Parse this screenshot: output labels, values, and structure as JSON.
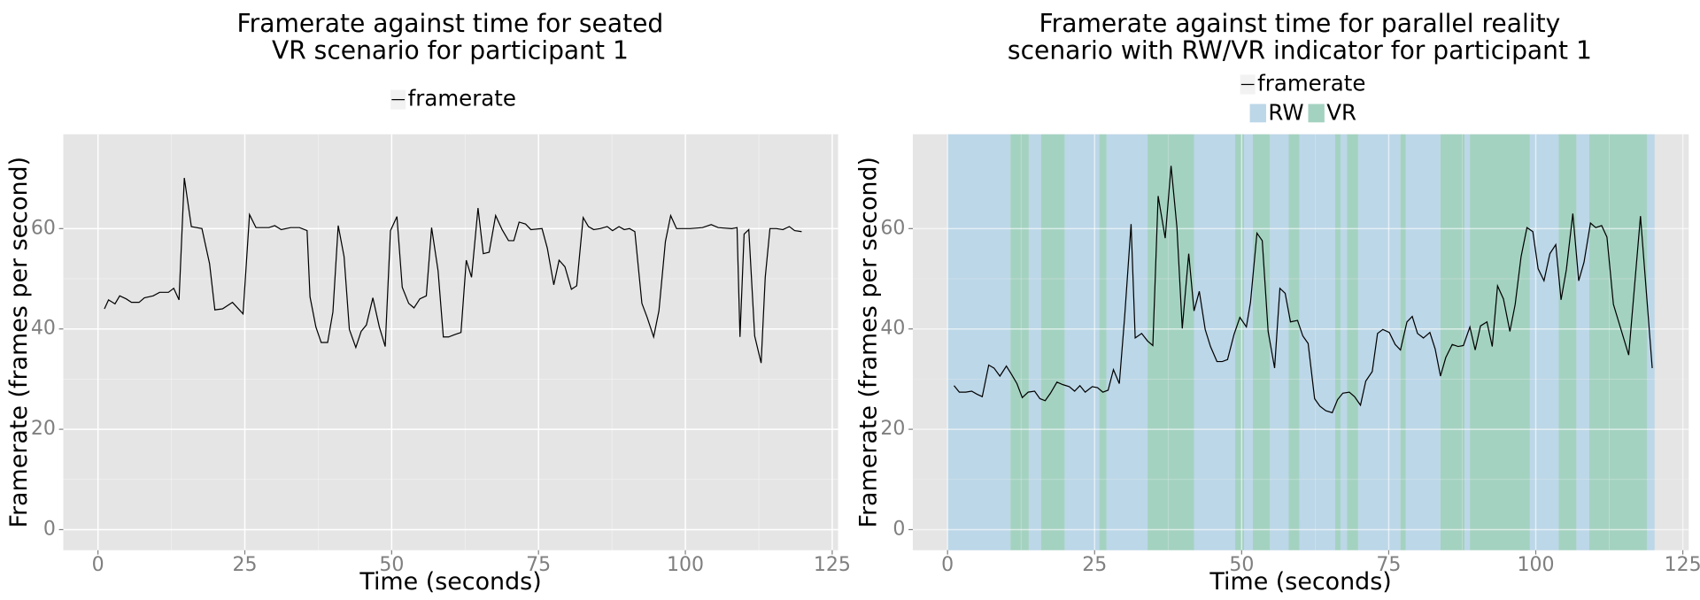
{
  "chart_data": [
    {
      "type": "line",
      "title": [
        "Framerate against time for seated",
        "VR scenario for participant 1"
      ],
      "x_label": "Time (seconds)",
      "y_label": "Framerate (frames per second)",
      "xlim": [
        -5.9,
        126
      ],
      "ylim": [
        -4.1,
        78.8
      ],
      "xticks": [
        0,
        25,
        50,
        75,
        100,
        125
      ],
      "yticks": [
        0,
        20,
        40,
        60
      ],
      "grid": true,
      "x": [
        1.1,
        1.8,
        2.9,
        3.7,
        4.8,
        5.7,
        7.0,
        7.9,
        9.4,
        10.5,
        12.0,
        12.9,
        13.8,
        14.7,
        15.9,
        17.7,
        19.0,
        19.9,
        21.2,
        22.9,
        24.7,
        25.8,
        26.9,
        29.1,
        30.1,
        31.2,
        32.8,
        34.3,
        35.6,
        36.1,
        37.1,
        38.0,
        39.1,
        40.0,
        40.9,
        41.9,
        42.8,
        43.9,
        44.8,
        45.7,
        46.8,
        47.9,
        48.9,
        49.8,
        50.9,
        51.8,
        52.9,
        53.8,
        54.8,
        55.9,
        56.8,
        57.9,
        58.8,
        59.7,
        60.8,
        61.8,
        62.7,
        63.6,
        64.7,
        65.6,
        66.6,
        67.7,
        68.8,
        69.9,
        70.8,
        71.7,
        72.8,
        73.7,
        75.6,
        76.5,
        77.6,
        78.5,
        79.5,
        80.6,
        81.5,
        82.6,
        83.5,
        84.4,
        85.5,
        86.7,
        87.6,
        88.7,
        89.6,
        90.5,
        91.4,
        92.6,
        93.5,
        94.6,
        95.5,
        96.6,
        97.5,
        98.5,
        100.8,
        102.9,
        104.4,
        105.6,
        107.9,
        108.8,
        109.3,
        110.0,
        110.8,
        111.8,
        112.9,
        113.6,
        114.4,
        115.5,
        116.6,
        117.7,
        118.6,
        119.8
      ],
      "series": [
        {
          "name": "framerate",
          "color": "#000000",
          "values": [
            44,
            45.8,
            45,
            46.6,
            46,
            45.3,
            45.3,
            46.2,
            46.6,
            47.3,
            47.3,
            48.1,
            45.8,
            70.1,
            60.4,
            60,
            53,
            43.8,
            44,
            45.3,
            43,
            62.8,
            60.2,
            60.2,
            60.6,
            59.8,
            60.2,
            60.2,
            59.6,
            46.4,
            40.4,
            37.3,
            37.3,
            43.4,
            60.6,
            54.4,
            39.9,
            36.3,
            39.5,
            40.8,
            46.2,
            40.4,
            36.5,
            59.6,
            62.4,
            48.3,
            45.1,
            44.2,
            46,
            46.6,
            60.2,
            51.6,
            38.4,
            38.4,
            38.9,
            39.3,
            53.7,
            50.3,
            64.1,
            55,
            55.3,
            62.6,
            59.8,
            57.6,
            57.6,
            61.3,
            60.9,
            59.8,
            60,
            56.1,
            48.8,
            53.7,
            52.4,
            47.9,
            48.6,
            62.2,
            60.4,
            59.8,
            60,
            60.4,
            59.6,
            60.4,
            59.8,
            60,
            59.4,
            45.1,
            42.3,
            38.4,
            43.6,
            57.4,
            62.6,
            60,
            60,
            60.2,
            60.8,
            60.2,
            60,
            60.2,
            38.4,
            58.9,
            59.8,
            38.6,
            33.2,
            50.3,
            60,
            60,
            59.8,
            60.4,
            59.6,
            59.4
          ]
        }
      ]
    },
    {
      "type": "line",
      "title": [
        "Framerate against time for parallel reality",
        "scenario with RW/VR indicator for participant 1"
      ],
      "x_label": "Time (seconds)",
      "y_label": "Framerate (frames per second)",
      "xlim": [
        -5.9,
        126
      ],
      "ylim": [
        -4.1,
        78.8
      ],
      "xticks": [
        0,
        25,
        50,
        75,
        100,
        125
      ],
      "yticks": [
        0,
        20,
        40,
        60
      ],
      "grid": true,
      "x": [
        1.1,
        2.0,
        3.1,
        4.1,
        5.0,
        5.9,
        7.0,
        7.9,
        8.9,
        10.0,
        10.9,
        11.8,
        12.7,
        13.7,
        14.8,
        15.7,
        16.6,
        17.5,
        18.6,
        19.6,
        20.7,
        21.6,
        22.5,
        23.4,
        24.6,
        25.5,
        26.4,
        27.3,
        28.2,
        29.2,
        30.1,
        31.2,
        31.9,
        33.0,
        34.0,
        34.9,
        35.8,
        37.0,
        38.0,
        39.0,
        39.9,
        41.0,
        41.9,
        42.8,
        43.8,
        44.7,
        45.8,
        46.7,
        47.6,
        48.7,
        49.7,
        50.8,
        51.5,
        52.6,
        53.5,
        54.5,
        55.6,
        56.5,
        57.4,
        58.3,
        59.5,
        60.4,
        61.3,
        62.4,
        63.3,
        64.3,
        65.4,
        66.3,
        67.2,
        68.3,
        69.2,
        70.2,
        71.1,
        72.2,
        73.1,
        74.0,
        75.1,
        76.1,
        77.0,
        78.1,
        79.0,
        79.9,
        80.9,
        82.0,
        82.9,
        83.8,
        84.7,
        85.8,
        86.8,
        87.7,
        88.8,
        89.7,
        90.6,
        91.7,
        92.6,
        93.5,
        94.5,
        95.6,
        96.5,
        97.5,
        98.5,
        99.5,
        100.4,
        101.4,
        102.4,
        103.4,
        104.3,
        105.2,
        106.3,
        107.3,
        108.2,
        109.3,
        110.2,
        111.2,
        112.1,
        113.2,
        115.8,
        117.8,
        119.8
      ],
      "series": [
        {
          "name": "framerate",
          "color": "#000000",
          "values": [
            28.7,
            27.4,
            27.4,
            27.6,
            27,
            26.5,
            32.8,
            32.2,
            30.6,
            32.6,
            30.9,
            29.1,
            26.3,
            27.4,
            27.6,
            26.1,
            25.7,
            27.2,
            29.4,
            28.9,
            28.5,
            27.6,
            28.7,
            27.4,
            28.5,
            28.3,
            27.4,
            27.8,
            31.9,
            29.1,
            42.3,
            60.9,
            38.2,
            39.1,
            37.6,
            36.7,
            66.5,
            58.1,
            72.5,
            60.2,
            40.1,
            55,
            43.6,
            47.5,
            39.9,
            36.5,
            33.5,
            33.5,
            33.9,
            38.9,
            42.3,
            40.4,
            45.3,
            59.1,
            57.6,
            39.5,
            32.2,
            48.1,
            47.1,
            41.4,
            41.7,
            38.6,
            37.1,
            26.1,
            24.6,
            23.7,
            23.3,
            25.9,
            27.2,
            27.4,
            26.5,
            24.8,
            29.6,
            31.5,
            39.1,
            39.9,
            39.3,
            36.9,
            35.8,
            41.4,
            42.5,
            39.1,
            38.2,
            39.3,
            36,
            30.6,
            34.3,
            36.9,
            36.5,
            36.7,
            40.4,
            35.8,
            40.6,
            41.4,
            36.5,
            48.6,
            46,
            39.5,
            44.9,
            54.4,
            60.2,
            59.4,
            52,
            49.6,
            55,
            56.8,
            45.8,
            51.8,
            63,
            49.6,
            53.3,
            61.1,
            60.2,
            60.6,
            58.3,
            44.9,
            34.8,
            62.5,
            32.2
          ]
        }
      ],
      "regions": [
        {
          "name": "RW",
          "color": "#bcd7e8",
          "intervals": [
            [
              0,
              10.7
            ],
            [
              13.8,
              15.9
            ],
            [
              19.9,
              25.8
            ],
            [
              27.0,
              34.0
            ],
            [
              41.9,
              48.9
            ],
            [
              50.4,
              51.9
            ],
            [
              54.8,
              58.0
            ],
            [
              59.8,
              65.9
            ],
            [
              66.8,
              67.9
            ],
            [
              69.8,
              77.0
            ],
            [
              77.9,
              83.8
            ],
            [
              87.9,
              88.8
            ],
            [
              99.0,
              103.9
            ],
            [
              106.9,
              109.1
            ],
            [
              118.9,
              120.2
            ]
          ]
        },
        {
          "name": "VR",
          "color": "#a4d2c1",
          "intervals": [
            [
              10.7,
              13.8
            ],
            [
              15.9,
              19.9
            ],
            [
              25.8,
              27.0
            ],
            [
              34.0,
              41.9
            ],
            [
              48.9,
              50.4
            ],
            [
              51.9,
              54.8
            ],
            [
              58.0,
              59.8
            ],
            [
              65.9,
              66.8
            ],
            [
              67.9,
              69.8
            ],
            [
              77.0,
              77.9
            ],
            [
              83.8,
              87.9
            ],
            [
              88.8,
              99.0
            ],
            [
              103.9,
              106.9
            ],
            [
              109.1,
              118.9
            ]
          ]
        }
      ]
    }
  ]
}
